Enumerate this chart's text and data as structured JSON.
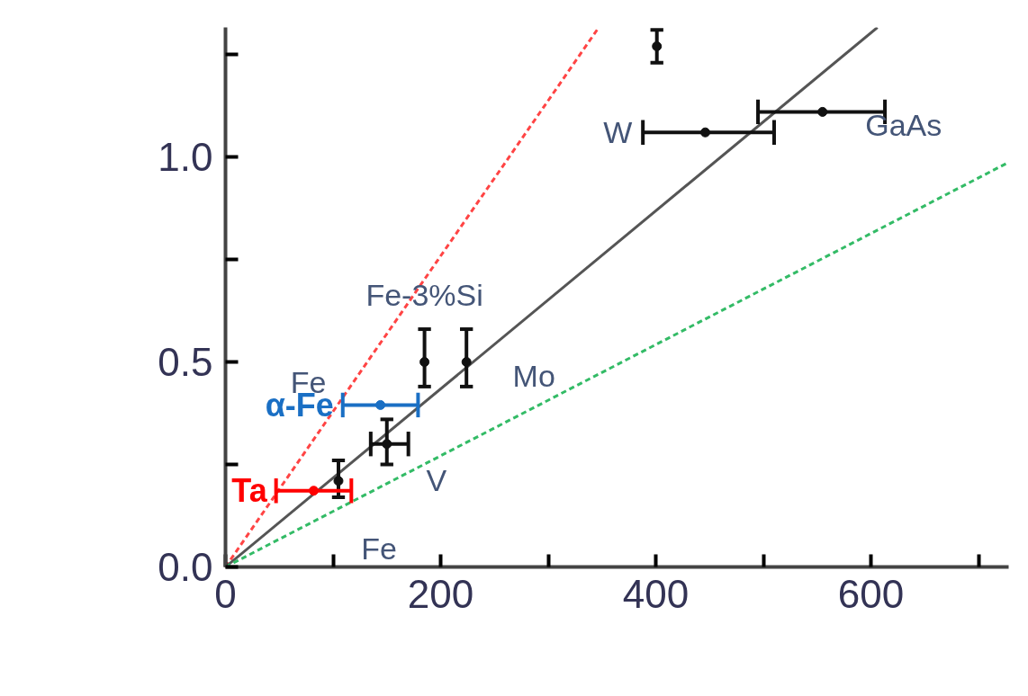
{
  "chart_data": {
    "type": "scatter",
    "xlim": [
      0,
      728
    ],
    "ylim": [
      0,
      1.316
    ],
    "xticks": [
      {
        "value": 0,
        "label": "0"
      },
      {
        "value": 100,
        "label": null
      },
      {
        "value": 200,
        "label": "200"
      },
      {
        "value": 300,
        "label": null
      },
      {
        "value": 400,
        "label": "400"
      },
      {
        "value": 500,
        "label": null
      },
      {
        "value": 600,
        "label": "600"
      },
      {
        "value": 700,
        "label": null
      }
    ],
    "yticks": [
      {
        "value": 0,
        "label": "0.0"
      },
      {
        "value": 0.25,
        "label": null
      },
      {
        "value": 0.5,
        "label": "0.5"
      },
      {
        "value": 0.75,
        "label": null
      },
      {
        "value": 1.0,
        "label": "1.0"
      },
      {
        "value": 1.25,
        "label": null
      }
    ],
    "grid": false,
    "marker": "circle",
    "series": [
      {
        "type": "line",
        "color": "#ff4444",
        "line_style": "dashed",
        "marker": "none",
        "x": [
          0,
          347
        ],
        "values": [
          0,
          1.316
        ]
      },
      {
        "type": "line",
        "color": "#555555",
        "line_style": "solid",
        "marker": "none",
        "x": [
          0,
          606
        ],
        "values": [
          0,
          1.316
        ]
      },
      {
        "type": "line",
        "color": "#33bb66",
        "line_style": "dashed",
        "marker": "none",
        "x": [
          0,
          728
        ],
        "values": [
          0,
          0.987
        ]
      },
      {
        "color": "#111111",
        "x": [
          401,
          446,
          555,
          185,
          224,
          150,
          105
        ],
        "values": [
          1.27,
          1.06,
          1.11,
          0.5,
          0.5,
          0.3,
          0.21
        ],
        "errors": [
          [
            1.23,
            1.31
          ],
          null,
          null,
          [
            0.44,
            0.58
          ],
          [
            0.44,
            0.58
          ],
          [
            0.25,
            0.36
          ],
          [
            0.17,
            0.26
          ]
        ],
        "xerrors": [
          null,
          [
            388,
            510
          ],
          [
            495,
            613
          ],
          null,
          null,
          [
            135,
            170
          ],
          null
        ]
      },
      {
        "type": "scatter",
        "name": "α-Fe",
        "color": "#1a6fc4",
        "x": [
          144
        ],
        "values": [
          0.395
        ],
        "xerrors": [
          [
            109,
            179
          ]
        ]
      },
      {
        "type": "scatter",
        "name": "Ta",
        "color": "#ff0000",
        "x": [
          82
        ],
        "values": [
          0.186
        ],
        "xerrors": [
          [
            47,
            117
          ]
        ]
      }
    ],
    "annotations": [
      {
        "text": "Fe-3%Si",
        "x": 185,
        "y": 0.5
      },
      {
        "text": "Mo",
        "x": 224,
        "y": 0.5
      },
      {
        "text": "V",
        "x": 150,
        "y": 0.3
      },
      {
        "text": "Fe",
        "x": 105,
        "y": 0.21
      },
      {
        "text": "Fe",
        "x": 144,
        "y": 0.395
      },
      {
        "text": "W",
        "x": 388,
        "y": 1.06
      },
      {
        "text": "GaAs",
        "x": 555,
        "y": 1.11
      }
    ]
  }
}
